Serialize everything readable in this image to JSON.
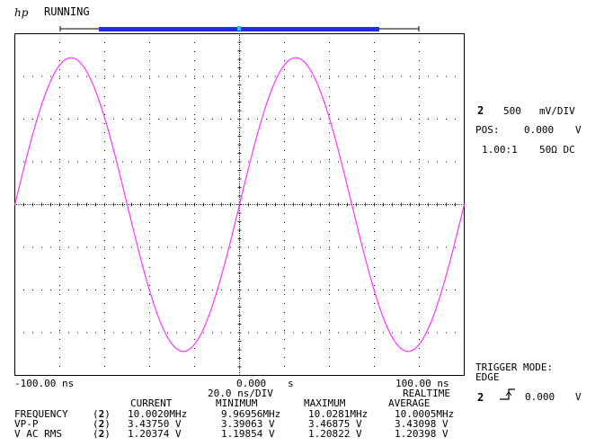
{
  "header": {
    "logo_text": "hp",
    "status": "RUNNING",
    "memory_bar_color": "#1f2fe0",
    "memory_marker_color": "#19d3e0"
  },
  "trace": {
    "color": "#ff33ff",
    "channel": "2"
  },
  "channel_panel": {
    "channel": "2",
    "scale": "500",
    "scale_unit": "mV/DIV",
    "pos_label": "POS:",
    "pos_value": "0.000",
    "pos_unit": "V",
    "probe": "1.00:1",
    "coupling": "50Ω DC"
  },
  "timebase": {
    "left_time": "-100.00 ns",
    "center_time": "0.000",
    "center_unit": "s",
    "right_time": "100.00 ns",
    "per_div": "20.0 ns/DIV",
    "mode": "REALTIME"
  },
  "trigger": {
    "mode_label": "TRIGGER MODE:",
    "mode": "EDGE",
    "channel": "2",
    "level": "0.000",
    "level_unit": "V",
    "edge_icon": "rising-edge-icon"
  },
  "measurements": {
    "headers": [
      "CURRENT",
      "MINIMUM",
      "MAXIMUM",
      "AVERAGE"
    ],
    "rows": [
      {
        "name": "FREQUENCY",
        "channel": "2",
        "current": "10.0020MHz",
        "minimum": "9.96956MHz",
        "maximum": "10.0281MHz",
        "average": "10.0005MHz"
      },
      {
        "name": "VP-P",
        "channel": "2",
        "current": "3.43750 V",
        "minimum": "3.39063 V",
        "maximum": "3.46875 V",
        "average": "3.43098 V"
      },
      {
        "name": "V AC RMS",
        "channel": "2",
        "current": "1.20374 V",
        "minimum": "1.19854 V",
        "maximum": "1.20822 V",
        "average": "1.20398 V"
      }
    ]
  },
  "chart_data": {
    "type": "line",
    "xlabel": "",
    "ylabel": "",
    "xlim": [
      -100,
      100
    ],
    "x_unit": "ns",
    "ylim": [
      -2.0,
      2.0
    ],
    "y_unit": "V",
    "grid": true,
    "series": [
      {
        "frequency_mhz": 10.002,
        "amplitude_v": 1.71875,
        "phase_at_center": "rising zero crossing",
        "x": [
          -100,
          -90,
          -80,
          -75,
          -70,
          -60,
          -50,
          -40,
          -30,
          -25,
          -20,
          -10,
          0,
          10,
          20,
          25,
          30,
          40,
          50,
          60,
          70,
          75,
          80,
          90,
          100
        ],
        "values": [
          0,
          1.01,
          1.63,
          1.72,
          1.63,
          1.01,
          0,
          -1.01,
          -1.63,
          -1.72,
          -1.63,
          -1.01,
          0,
          1.01,
          1.63,
          1.72,
          1.63,
          1.01,
          0,
          -1.01,
          -1.63,
          -1.72,
          -1.63,
          -1.01,
          0
        ]
      }
    ]
  }
}
